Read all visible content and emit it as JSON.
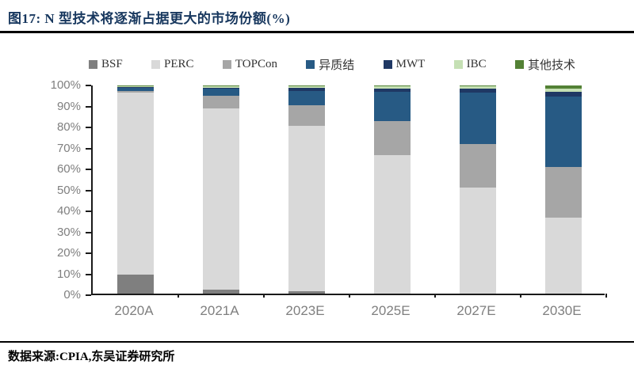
{
  "header": {
    "title": "图17: N 型技术将逐渐占据更大的市场份额(%)"
  },
  "footer": {
    "source": "数据来源:CPIA,东吴证券研究所"
  },
  "chart_data": {
    "type": "bar",
    "stacked": true,
    "title": "N 型技术将逐渐占据更大的市场份额(%)",
    "xlabel": "",
    "ylabel": "",
    "ylim": [
      0,
      100
    ],
    "ytick_step": 10,
    "grid": false,
    "legend_position": "top",
    "categories": [
      "2020A",
      "2021A",
      "2023E",
      "2025E",
      "2027E",
      "2030E"
    ],
    "yticks": [
      "0%",
      "10%",
      "20%",
      "30%",
      "40%",
      "50%",
      "60%",
      "70%",
      "80%",
      "90%",
      "100%"
    ],
    "series": [
      {
        "name": "BSF",
        "color": "#7f7f7f",
        "values": [
          9,
          2,
          1,
          0,
          0,
          0
        ]
      },
      {
        "name": "PERC",
        "color": "#d9d9d9",
        "values": [
          87.5,
          87,
          79.5,
          66.5,
          51,
          36.5
        ]
      },
      {
        "name": "TOPCon",
        "color": "#a6a6a6",
        "values": [
          1,
          6,
          10,
          16.5,
          21,
          24.5
        ]
      },
      {
        "name": "异质结",
        "color": "#275a84",
        "values": [
          1.5,
          3.5,
          7,
          14,
          24.5,
          33.5
        ]
      },
      {
        "name": "MWT",
        "color": "#1f3864",
        "values": [
          0.5,
          0.5,
          1.5,
          1.5,
          2,
          2.5
        ]
      },
      {
        "name": "IBC",
        "color": "#c5e0b4",
        "values": [
          0.2,
          0.5,
          0.5,
          1,
          1,
          1.5
        ]
      },
      {
        "name": "其他技术",
        "color": "#538135",
        "values": [
          0.3,
          0.5,
          0.5,
          0.5,
          0.5,
          1.5
        ]
      }
    ],
    "axis_colors": {
      "tick_label": "#7f7f7f",
      "axis_line": "#1a1a1a"
    }
  }
}
